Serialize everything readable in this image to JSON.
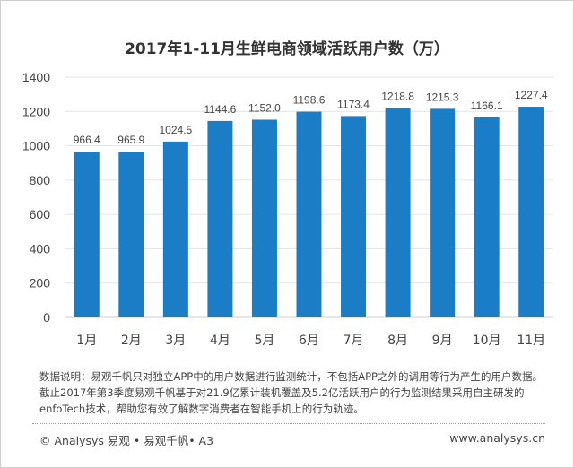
{
  "chart_data": {
    "type": "bar",
    "title": "2017年1-11月生鲜电商领域活跃用户数（万）",
    "categories": [
      "1月",
      "2月",
      "3月",
      "4月",
      "5月",
      "6月",
      "7月",
      "8月",
      "9月",
      "10月",
      "11月"
    ],
    "values": [
      966.4,
      965.9,
      1024.5,
      1144.6,
      1152.0,
      1198.6,
      1173.4,
      1218.8,
      1215.3,
      1166.1,
      1227.4
    ],
    "value_labels": [
      "966.4",
      "965.9",
      "1024.5",
      "1144.6",
      "1152.0",
      "1198.6",
      "1173.4",
      "1218.8",
      "1215.3",
      "1166.1",
      "1227.4"
    ],
    "ylim": [
      0,
      1400
    ],
    "yticks": [
      0,
      200,
      400,
      600,
      800,
      1000,
      1200,
      1400
    ],
    "xlabel": "",
    "ylabel": "",
    "grid": true,
    "bar_color": "#1a7dc5"
  },
  "note": "数据说明：易观千帆只对独立APP中的用户数据进行监测统计，不包括APP之外的调用等行为产生的用户数据。截止2017年第3季度易观千帆基于对21.9亿累计装机覆盖及5.2亿活跃用户的行为监测结果采用自主研发的enfoTech技术，帮助您有效了解数字消费者在智能手机上的行为轨迹。",
  "footer": {
    "left": "© Analysys 易观 • 易观千帆• A3",
    "right": "www.analysys.cn"
  }
}
